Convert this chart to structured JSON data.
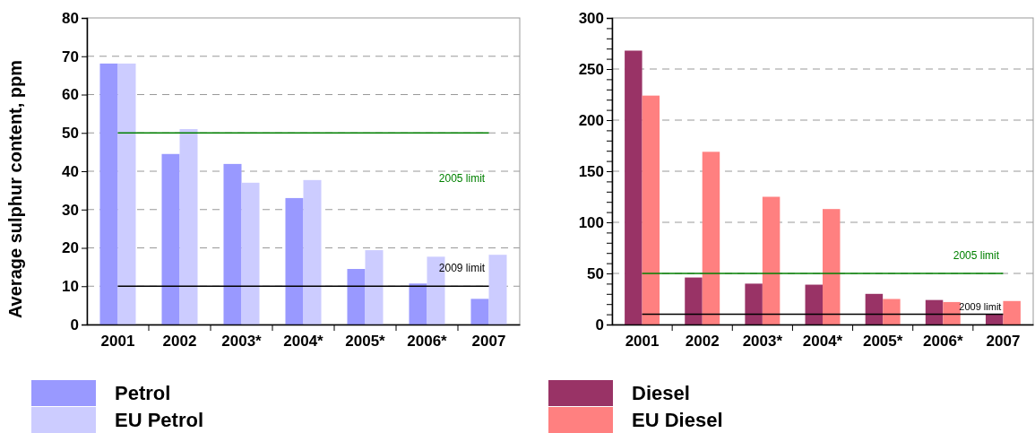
{
  "chart_data": [
    {
      "type": "bar",
      "ylabel": "Average sulphur content, ppm",
      "categories": [
        "2001",
        "2002",
        "2003*",
        "2004*",
        "2005*",
        "2006*",
        "2007"
      ],
      "series": [
        {
          "name": "Petrol",
          "color": "#9999ff",
          "values": [
            68.1,
            44.5,
            41.9,
            33.0,
            14.5,
            10.7,
            6.7
          ]
        },
        {
          "name": "EU Petrol",
          "color": "#ccccff",
          "values": [
            68.1,
            51.0,
            37.0,
            37.7,
            19.4,
            17.7,
            18.2
          ]
        }
      ],
      "ylim": [
        0,
        80
      ],
      "yticks": [
        0,
        10,
        20,
        30,
        40,
        50,
        60,
        70,
        80
      ],
      "grid": "y",
      "legend": "bottom",
      "ref_lines": [
        {
          "axis": "y",
          "value": 50,
          "label": "2005 limit",
          "color": "#008000"
        },
        {
          "axis": "y",
          "value": 10,
          "label": "2009 limit",
          "color": "#000000"
        }
      ]
    },
    {
      "type": "bar",
      "categories": [
        "2001",
        "2002",
        "2003*",
        "2004*",
        "2005*",
        "2006*",
        "2007"
      ],
      "series": [
        {
          "name": "Diesel",
          "color": "#993366",
          "values": [
            268,
            46,
            40,
            39,
            30,
            24,
            10
          ]
        },
        {
          "name": "EU Diesel",
          "color": "#ff8080",
          "values": [
            224,
            169,
            125,
            113,
            25,
            22,
            23
          ]
        }
      ],
      "ylim": [
        0,
        300
      ],
      "yticks": [
        0,
        {
          "value": 10,
          "label": null
        },
        {
          "value": 20,
          "label": null
        },
        {
          "value": 30,
          "label": null
        },
        {
          "value": 40,
          "label": null
        },
        50,
        {
          "value": 60,
          "label": null
        },
        {
          "value": 70,
          "label": null
        },
        {
          "value": 80,
          "label": null
        },
        {
          "value": 90,
          "label": null
        },
        100,
        {
          "value": 110,
          "label": null
        },
        {
          "value": 120,
          "label": null
        },
        {
          "value": 130,
          "label": null
        },
        {
          "value": 140,
          "label": null
        },
        150,
        {
          "value": 160,
          "label": null
        },
        {
          "value": 170,
          "label": null
        },
        {
          "value": 180,
          "label": null
        },
        {
          "value": 190,
          "label": null
        },
        200,
        {
          "value": 210,
          "label": null
        },
        {
          "value": 220,
          "label": null
        },
        {
          "value": 230,
          "label": null
        },
        {
          "value": 240,
          "label": null
        },
        250,
        {
          "value": 260,
          "label": null
        },
        {
          "value": 270,
          "label": null
        },
        {
          "value": 280,
          "label": null
        },
        {
          "value": 290,
          "label": null
        },
        300
      ],
      "grid": "y",
      "legend": "bottom",
      "ref_lines": [
        {
          "axis": "y",
          "value": 50,
          "label": "2005 limit",
          "color": "#008000"
        },
        {
          "axis": "y",
          "value": 10,
          "label": "2009 limit",
          "color": "#000000"
        }
      ]
    }
  ]
}
